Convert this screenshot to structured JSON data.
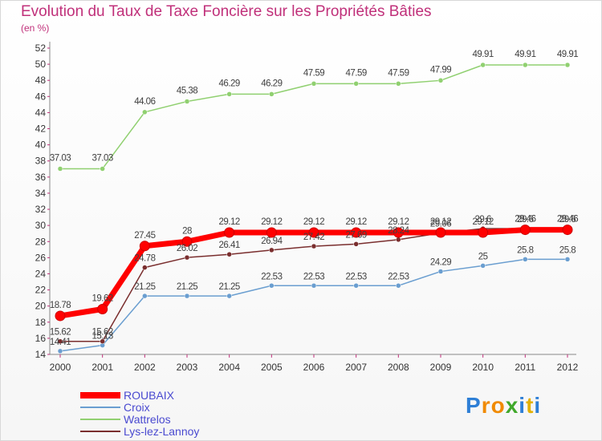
{
  "title": "Evolution du Taux de Taxe Foncière sur les Propriétés Bâties",
  "subtitle": "(en %)",
  "logo": {
    "letters": [
      "P",
      "r",
      "o",
      "x",
      "i",
      "t",
      "i"
    ],
    "colors": [
      "#2e7fd6",
      "#f08a00",
      "#f08a00",
      "#40a82a",
      "#2e7fd6",
      "#e3b000",
      "#2e7fd6"
    ]
  },
  "chart_data": {
    "type": "line",
    "title": "Evolution du Taux de Taxe Foncière sur les Propriétés Bâties",
    "ylabel": "(en %)",
    "xlabel": "",
    "x": [
      "2000",
      "2001",
      "2002",
      "2003",
      "2004",
      "2005",
      "2006",
      "2007",
      "2008",
      "2009",
      "2010",
      "2011",
      "2012"
    ],
    "ylim": [
      14,
      52
    ],
    "yticks": [
      14,
      16,
      18,
      20,
      22,
      24,
      26,
      28,
      30,
      32,
      34,
      36,
      38,
      40,
      42,
      44,
      46,
      48,
      50,
      52
    ],
    "grid": false,
    "legend_position": "bottom-left",
    "series": [
      {
        "name": "ROUBAIX",
        "color": "#ff0000",
        "label_color": "#404040",
        "values": [
          18.78,
          19.62,
          27.45,
          28,
          29.12,
          29.12,
          29.12,
          29.12,
          29.12,
          29.12,
          29.12,
          29.46,
          29.46
        ],
        "labels": [
          "18.78",
          "19.62",
          "27.45",
          "28",
          "29.12",
          "29.12",
          "29.12",
          "29.12",
          "29.12",
          "29.12",
          "29.12",
          "29.46",
          "29.46"
        ]
      },
      {
        "name": "Croix",
        "color": "#6a9ed0",
        "label_color": "#404040",
        "values": [
          14.41,
          15.13,
          21.25,
          21.25,
          21.25,
          22.53,
          22.53,
          22.53,
          22.53,
          24.29,
          25,
          25.8,
          25.8
        ],
        "labels": [
          "14.41",
          "15.13",
          "21.25",
          "21.25",
          "21.25",
          "22.53",
          "22.53",
          "22.53",
          "22.53",
          "24.29",
          "25",
          "25.8",
          "25.8"
        ]
      },
      {
        "name": "Wattrelos",
        "color": "#90d070",
        "label_color": "#404040",
        "values": [
          37.03,
          37.03,
          44.06,
          45.38,
          46.29,
          46.29,
          47.59,
          47.59,
          47.59,
          47.99,
          49.91,
          49.91,
          49.91
        ],
        "labels": [
          "37.03",
          "37.03",
          "44.06",
          "45.38",
          "46.29",
          "46.29",
          "47.59",
          "47.59",
          "47.59",
          "47.99",
          "49.91",
          "49.91",
          "49.91"
        ]
      },
      {
        "name": "Lys-lez-Lannoy",
        "color": "#7a2e2e",
        "label_color": "#404040",
        "values": [
          15.62,
          15.62,
          24.78,
          26.02,
          26.41,
          26.94,
          27.42,
          27.69,
          28.24,
          29.06,
          29.6,
          29.6,
          29.6
        ],
        "labels": [
          "15.62",
          "15.62",
          "24.78",
          "26.02",
          "26.41",
          "26.94",
          "27.42",
          "27.69",
          "28.24",
          "29.06",
          "29.6",
          "29.6",
          "29.6"
        ]
      }
    ]
  }
}
